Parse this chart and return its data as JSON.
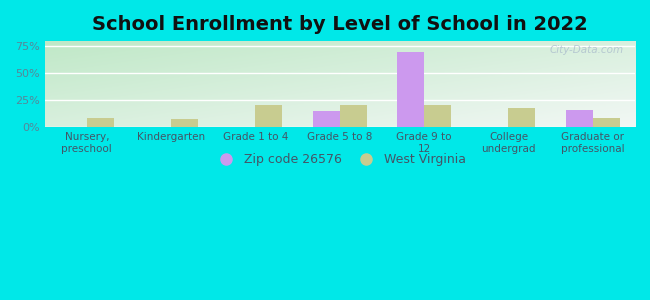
{
  "title": "School Enrollment by Level of School in 2022",
  "categories": [
    "Nursery,\npreschool",
    "Kindergarten",
    "Grade 1 to 4",
    "Grade 5 to 8",
    "Grade 9 to\n12",
    "College\nundergrad",
    "Graduate or\nprofessional"
  ],
  "zip_values": [
    0,
    0,
    0,
    15,
    70,
    0,
    16
  ],
  "wv_values": [
    9,
    8,
    21,
    21,
    21,
    18,
    9
  ],
  "zip_color": "#cc99ee",
  "wv_color": "#c8cc90",
  "background_color": "#00e8e8",
  "plot_bg_left_bottom": "#b8e8c8",
  "plot_bg_right_top": "#f0f8ff",
  "ylim": [
    0,
    80
  ],
  "yticks": [
    0,
    25,
    50,
    75
  ],
  "ytick_labels": [
    "0%",
    "25%",
    "50%",
    "75%"
  ],
  "ytick_color": "#558899",
  "bar_width": 0.32,
  "title_fontsize": 14,
  "legend_zip_label": "Zip code 26576",
  "legend_wv_label": "West Virginia",
  "watermark": "City-Data.com",
  "tick_label_color": "#445566",
  "grid_color": "#ffffff"
}
